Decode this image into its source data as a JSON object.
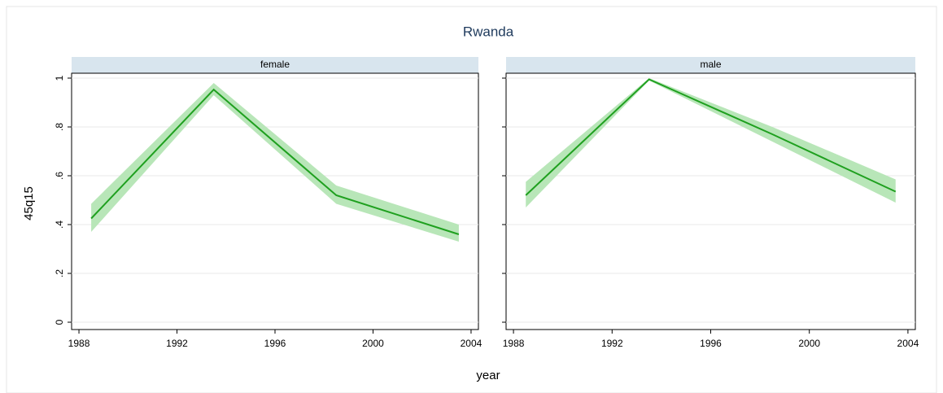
{
  "figure": {
    "title": "Rwanda",
    "x_label": "year",
    "y_label": "45q15"
  },
  "chart_data": [
    {
      "type": "line",
      "subtitle": "female",
      "x": [
        1988.5,
        1993.5,
        1998.5,
        2003.5
      ],
      "series": [
        {
          "color": "#1fa01f",
          "values": [
            0.425,
            0.953,
            0.52,
            0.36
          ],
          "ci_lower": [
            0.37,
            0.93,
            0.485,
            0.33
          ],
          "ci_upper": [
            0.485,
            0.98,
            0.56,
            0.4
          ],
          "ci_color": "#b8e6b8"
        }
      ],
      "xlim": [
        1987.7,
        2004.3
      ],
      "ylim": [
        -0.03,
        1.02
      ],
      "xticks": [
        1988,
        1992,
        1996,
        2000,
        2004
      ],
      "yticks": [
        0,
        {
          "value": 0.2,
          "label": ".2"
        },
        {
          "value": 0.4,
          "label": ".4"
        },
        {
          "value": 0.6,
          "label": ".6"
        },
        {
          "value": 0.8,
          "label": ".8"
        },
        1
      ],
      "grid": true
    },
    {
      "type": "line",
      "subtitle": "male",
      "x": [
        1988.5,
        1993.5,
        1998.5,
        2003.5
      ],
      "series": [
        {
          "color": "#1fa01f",
          "values": [
            0.52,
            0.995,
            0.77,
            0.535
          ],
          "ci_lower": [
            0.47,
            0.99,
            0.74,
            0.49
          ],
          "ci_upper": [
            0.575,
            1.0,
            0.8,
            0.585
          ],
          "ci_color": "#b8e6b8"
        }
      ],
      "xlim": [
        1987.7,
        2004.3
      ],
      "ylim": [
        -0.03,
        1.02
      ],
      "xticks": [
        1988,
        1992,
        1996,
        2000,
        2004
      ],
      "grid": true
    }
  ]
}
